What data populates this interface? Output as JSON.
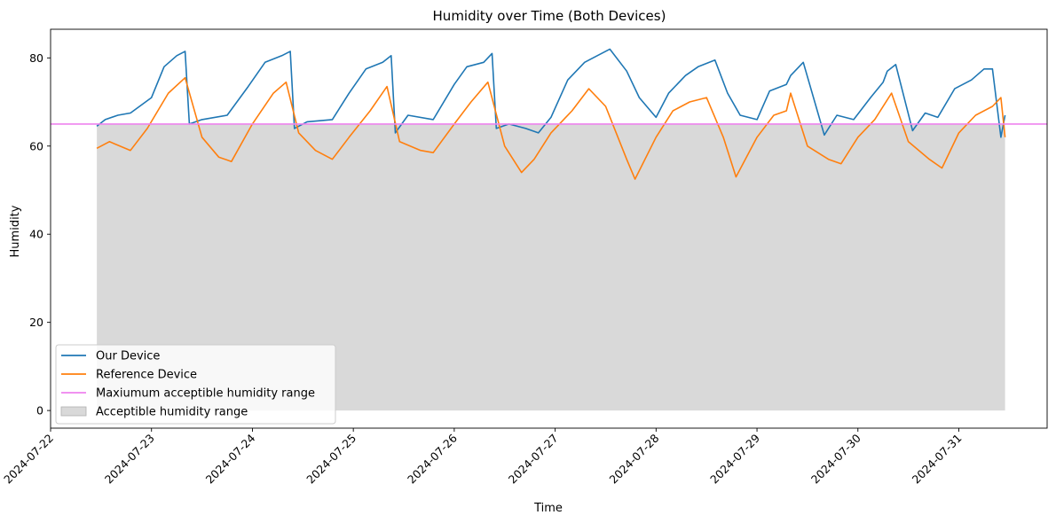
{
  "chart_data": {
    "type": "line",
    "title": "Humidity over Time (Both Devices)",
    "xlabel": "Time",
    "ylabel": "Humidity",
    "xlim": [
      "2024-07-22",
      "2024-07-31T21:00"
    ],
    "ylim": [
      -4,
      86.5
    ],
    "x_ticks": [
      "2024-07-22",
      "2024-07-23",
      "2024-07-24",
      "2024-07-25",
      "2024-07-26",
      "2024-07-27",
      "2024-07-28",
      "2024-07-29",
      "2024-07-30",
      "2024-07-31"
    ],
    "y_ticks": [
      0,
      20,
      40,
      60,
      80
    ],
    "grid": false,
    "legend_position": "lower-left",
    "threshold": {
      "name": "Maxiumum acceptible humidity range",
      "value": 65,
      "color": "#ee82ee"
    },
    "band": {
      "name": "Acceptible humidity range",
      "x_start": "2024-07-22T11:00",
      "x_end": "2024-07-31T11:00",
      "y_low": 0,
      "y_high": 65,
      "color": "#bfbfbf"
    },
    "series": [
      {
        "name": "Our Device",
        "color": "#1f77b4",
        "x": [
          "2024-07-22T11:00",
          "2024-07-22T13:00",
          "2024-07-22T16:00",
          "2024-07-22T19:00",
          "2024-07-23T00:00",
          "2024-07-23T03:00",
          "2024-07-23T06:00",
          "2024-07-23T08:00",
          "2024-07-23T09:00",
          "2024-07-23T12:00",
          "2024-07-23T18:00",
          "2024-07-23T23:00",
          "2024-07-24T03:00",
          "2024-07-24T07:00",
          "2024-07-24T09:00",
          "2024-07-24T10:00",
          "2024-07-24T13:00",
          "2024-07-24T19:00",
          "2024-07-24T23:00",
          "2024-07-25T03:00",
          "2024-07-25T07:00",
          "2024-07-25T09:00",
          "2024-07-25T10:00",
          "2024-07-25T13:00",
          "2024-07-25T19:00",
          "2024-07-26T00:00",
          "2024-07-26T03:00",
          "2024-07-26T07:00",
          "2024-07-26T09:00",
          "2024-07-26T10:00",
          "2024-07-26T13:00",
          "2024-07-26T17:00",
          "2024-07-26T20:00",
          "2024-07-26T23:00",
          "2024-07-27T03:00",
          "2024-07-27T07:00",
          "2024-07-27T09:00",
          "2024-07-27T13:00",
          "2024-07-27T17:00",
          "2024-07-27T20:00",
          "2024-07-28T00:00",
          "2024-07-28T03:00",
          "2024-07-28T07:00",
          "2024-07-28T10:00",
          "2024-07-28T14:00",
          "2024-07-28T17:00",
          "2024-07-28T20:00",
          "2024-07-29T00:00",
          "2024-07-29T03:00",
          "2024-07-29T07:00",
          "2024-07-29T08:00",
          "2024-07-29T11:00",
          "2024-07-29T16:00",
          "2024-07-29T19:00",
          "2024-07-29T23:00",
          "2024-07-30T03:00",
          "2024-07-30T06:00",
          "2024-07-30T07:00",
          "2024-07-30T09:00",
          "2024-07-30T13:00",
          "2024-07-30T16:00",
          "2024-07-30T19:00",
          "2024-07-30T23:00",
          "2024-07-31T03:00",
          "2024-07-31T06:00",
          "2024-07-31T08:00",
          "2024-07-31T10:00",
          "2024-07-31T11:00"
        ],
        "y": [
          64.5,
          66,
          67,
          67.5,
          71,
          78,
          80.5,
          81.5,
          65,
          66,
          67,
          73.5,
          79,
          80.5,
          81.5,
          64,
          65.5,
          66,
          72,
          77.5,
          79,
          80.5,
          63,
          67,
          66,
          74,
          78,
          79,
          81,
          64,
          65,
          64,
          63,
          66.5,
          75,
          79,
          80,
          82,
          77,
          71,
          66.5,
          72,
          76,
          78,
          79.5,
          72,
          67,
          66,
          72.5,
          74,
          76,
          79,
          62.5,
          67,
          66,
          71,
          74.5,
          77,
          78.5,
          63.5,
          67.5,
          66.5,
          73,
          75,
          77.5,
          77.5,
          62,
          67
        ]
      },
      {
        "name": "Reference Device",
        "color": "#ff7f0e",
        "x": [
          "2024-07-22T11:00",
          "2024-07-22T14:00",
          "2024-07-22T19:00",
          "2024-07-22T23:00",
          "2024-07-23T04:00",
          "2024-07-23T08:00",
          "2024-07-23T12:00",
          "2024-07-23T16:00",
          "2024-07-23T19:00",
          "2024-07-24T00:00",
          "2024-07-24T05:00",
          "2024-07-24T08:00",
          "2024-07-24T11:00",
          "2024-07-24T15:00",
          "2024-07-24T19:00",
          "2024-07-24T23:00",
          "2024-07-25T04:00",
          "2024-07-25T08:00",
          "2024-07-25T11:00",
          "2024-07-25T16:00",
          "2024-07-25T19:00",
          "2024-07-26T00:00",
          "2024-07-26T04:00",
          "2024-07-26T08:00",
          "2024-07-26T12:00",
          "2024-07-26T16:00",
          "2024-07-26T19:00",
          "2024-07-26T23:00",
          "2024-07-27T04:00",
          "2024-07-27T08:00",
          "2024-07-27T12:00",
          "2024-07-27T17:00",
          "2024-07-27T19:00",
          "2024-07-28T00:00",
          "2024-07-28T04:00",
          "2024-07-28T08:00",
          "2024-07-28T12:00",
          "2024-07-28T16:00",
          "2024-07-28T19:00",
          "2024-07-29T00:00",
          "2024-07-29T04:00",
          "2024-07-29T07:00",
          "2024-07-29T08:00",
          "2024-07-29T12:00",
          "2024-07-29T17:00",
          "2024-07-29T20:00",
          "2024-07-30T00:00",
          "2024-07-30T04:00",
          "2024-07-30T08:00",
          "2024-07-30T12:00",
          "2024-07-30T17:00",
          "2024-07-30T20:00",
          "2024-07-31T00:00",
          "2024-07-31T04:00",
          "2024-07-31T08:00",
          "2024-07-31T10:00",
          "2024-07-31T11:00"
        ],
        "y": [
          59.5,
          61,
          59,
          64,
          72,
          75.5,
          62,
          57.5,
          56.5,
          65,
          72,
          74.5,
          63,
          59,
          57,
          62,
          68,
          73.5,
          61,
          59,
          58.5,
          65,
          70,
          74.5,
          60,
          54,
          57,
          63,
          68,
          73,
          69,
          57,
          52.5,
          62,
          68,
          70,
          71,
          62,
          53,
          62,
          67,
          68,
          72,
          60,
          57,
          56,
          62,
          66,
          72,
          61,
          57,
          55,
          63,
          67,
          69,
          71,
          62
        ]
      }
    ]
  }
}
